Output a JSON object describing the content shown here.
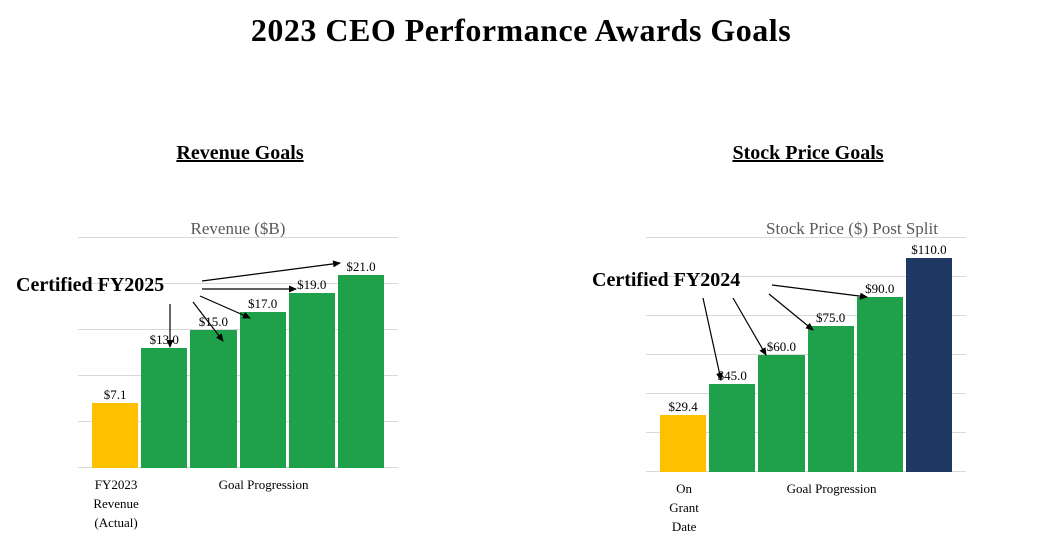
{
  "title": "2023 CEO Performance Awards Goals",
  "sections": [
    {
      "heading": "Revenue Goals"
    },
    {
      "heading": "Stock Price Goals"
    }
  ],
  "colors": {
    "actual_bar": "#FFC000",
    "goal_bar": "#1FA04A",
    "final_goal_bar": "#1F3864",
    "gridline": "#D9D9D9",
    "chart_title_text": "#595959"
  },
  "chart_data": [
    {
      "type": "bar",
      "title": "Revenue ($B)",
      "annotation": "Certified FY2025",
      "values": [
        7.1,
        13.0,
        15.0,
        17.0,
        19.0,
        21.0
      ],
      "labels": [
        "$7.1",
        "$13.0",
        "$15.0",
        "$17.0",
        "$19.0",
        "$21.0"
      ],
      "bar_colors": [
        "#FFC000",
        "#1FA04A",
        "#1FA04A",
        "#1FA04A",
        "#1FA04A",
        "#1FA04A"
      ],
      "x_axis": {
        "first": "FY2023\nRevenue\n(Actual)",
        "rest": "Goal Progression"
      },
      "ylim": [
        0,
        25
      ],
      "grid_step": 5,
      "grid": true,
      "legend": "none"
    },
    {
      "type": "bar",
      "title": "Stock Price ($) Post Split",
      "annotation": "Certified FY2024",
      "values": [
        29.4,
        45.0,
        60.0,
        75.0,
        90.0,
        110.0
      ],
      "labels": [
        "$29.4",
        "$45.0",
        "$60.0",
        "$75.0",
        "$90.0",
        "$110.0"
      ],
      "bar_colors": [
        "#FFC000",
        "#1FA04A",
        "#1FA04A",
        "#1FA04A",
        "#1FA04A",
        "#1F3864"
      ],
      "x_axis": {
        "first": "On Grant\nDate",
        "rest": "Goal Progression"
      },
      "ylim": [
        0,
        120
      ],
      "grid_step": 20,
      "grid": true,
      "legend": "none"
    }
  ]
}
